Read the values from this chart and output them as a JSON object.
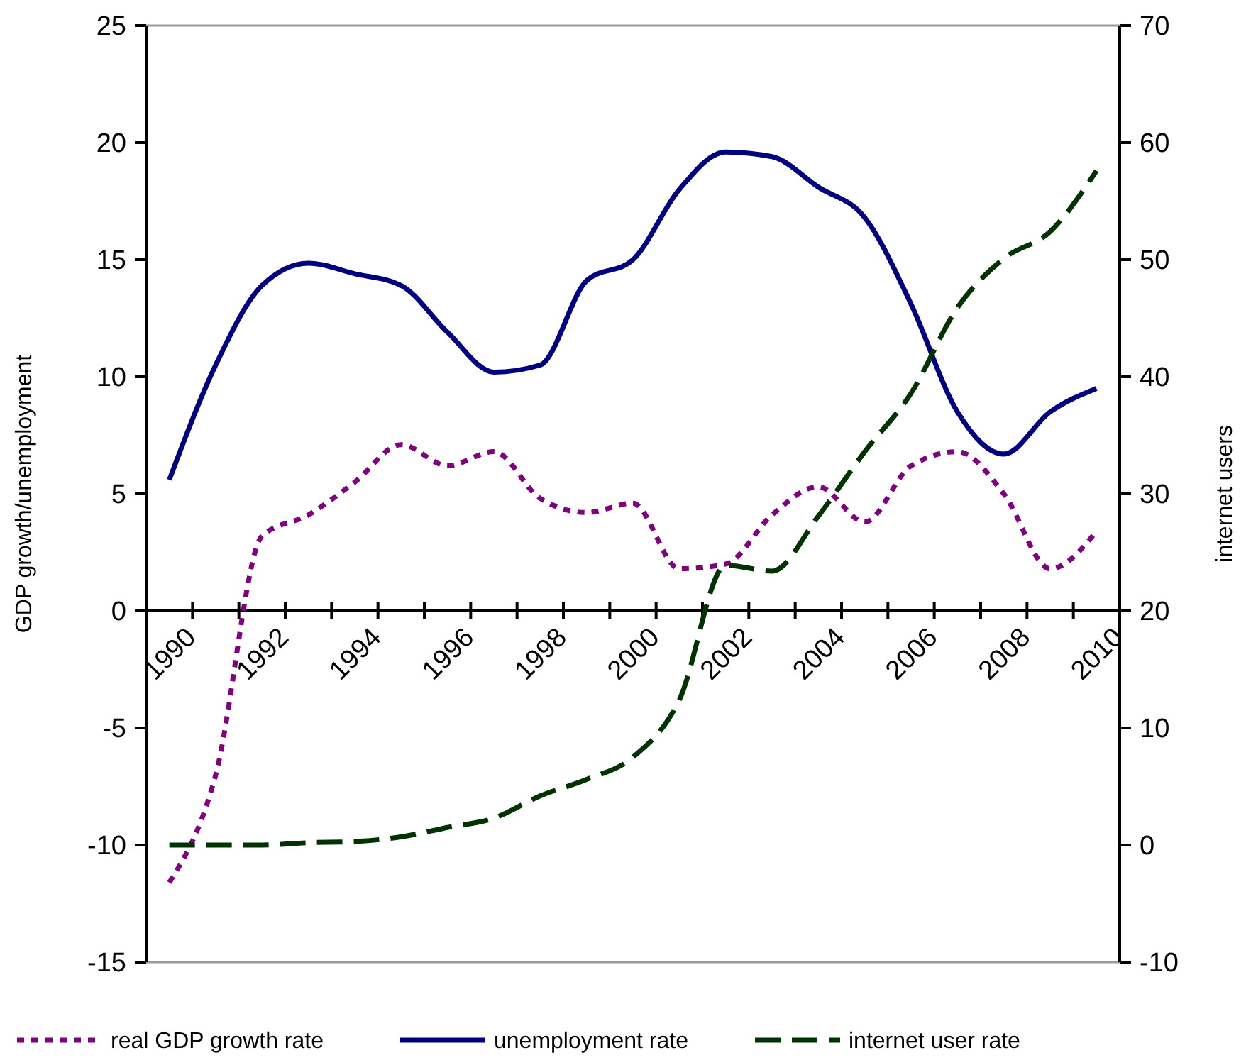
{
  "chart_data": {
    "type": "line",
    "ylabel": "GDP growth/unemployment",
    "y2label": "internet users",
    "categories": [
      "1990",
      null,
      "1992",
      null,
      "1994",
      null,
      "1996",
      null,
      "1998",
      null,
      "2000",
      null,
      "2002",
      null,
      "2004",
      null,
      "2006",
      null,
      "2008",
      null,
      "2010"
    ],
    "ylim": [
      -15,
      25
    ],
    "yticks": [
      -15,
      -10,
      -5,
      0,
      5,
      10,
      15,
      20,
      25
    ],
    "y2lim": [
      -10,
      70
    ],
    "y2ticks": [
      -10,
      0,
      10,
      20,
      30,
      40,
      50,
      60,
      70
    ],
    "grid": false,
    "legend": "bottom",
    "series": [
      {
        "name": "real GDP growth rate",
        "color": "#800080",
        "line_style": "dotted",
        "values": [
          -11.6,
          -7,
          3.2,
          4.1,
          5.5,
          7.1,
          6.2,
          6.8,
          4.8,
          4.2,
          4.6,
          1.8,
          2,
          4.1,
          5.3,
          3.8,
          6.2,
          6.8,
          5,
          1.8,
          3.4
        ]
      },
      {
        "name": "unemployment rate",
        "color": "#000080",
        "line_style": "solid",
        "values": [
          5.6,
          10.5,
          13.9,
          14.85,
          14.4,
          13.9,
          11.9,
          10.2,
          10.5,
          14.1,
          15,
          18,
          19.6,
          19.4,
          18.1,
          16.8,
          13.1,
          8.5,
          6.7,
          8.5,
          9.5
        ]
      },
      {
        "name": "internet user rate",
        "color": "#003300",
        "line_style": "dashed",
        "axis": "y2",
        "values": [
          0,
          0,
          0,
          0.2,
          0.3,
          0.7,
          1.5,
          2.3,
          4.2,
          5.6,
          7.5,
          12.4,
          23.9,
          23.4,
          28.1,
          33.6,
          38.6,
          45.9,
          50.1,
          52.4,
          57.6
        ]
      }
    ]
  }
}
